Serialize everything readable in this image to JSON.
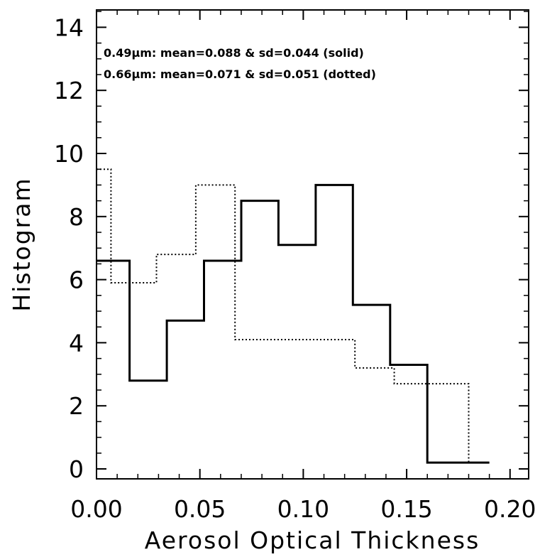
{
  "chart_data": {
    "type": "histogram",
    "xlabel": "Aerosol Optical Thickness",
    "ylabel": "Histogram",
    "xlim": [
      0.0,
      0.2
    ],
    "ylim": [
      0,
      15
    ],
    "xticks": [
      "0.00",
      "0.05",
      "0.10",
      "0.15",
      "0.20"
    ],
    "yticks": [
      "0",
      "2",
      "4",
      "6",
      "8",
      "10",
      "12",
      "14"
    ],
    "annotations": [
      "0.49μm: mean=0.088 & sd=0.044 (solid)",
      "0.66μm: mean=0.071 & sd=0.051 (dotted)"
    ],
    "series": [
      {
        "style": "solid",
        "bin_edges": [
          0.0,
          0.016,
          0.034,
          0.052,
          0.07,
          0.088,
          0.106,
          0.124,
          0.142,
          0.16,
          0.178,
          0.19
        ],
        "values": [
          6.6,
          2.8,
          4.7,
          6.6,
          8.5,
          7.1,
          9.0,
          5.2,
          3.3,
          0.2,
          0.2
        ]
      },
      {
        "style": "dotted",
        "bin_edges": [
          0.0,
          0.007,
          0.029,
          0.048,
          0.067,
          0.125,
          0.144,
          0.18,
          0.19
        ],
        "values": [
          9.5,
          5.9,
          6.8,
          9.0,
          4.1,
          3.2,
          2.7,
          0.2
        ]
      }
    ]
  }
}
